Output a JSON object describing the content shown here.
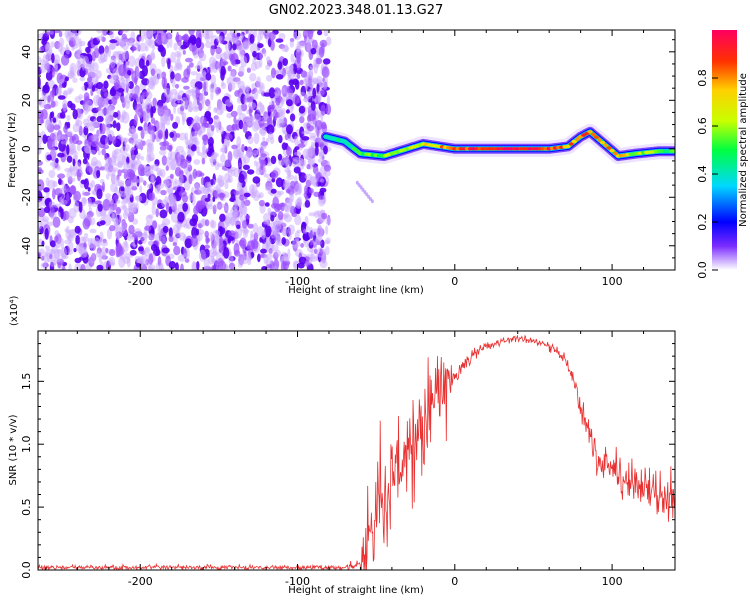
{
  "title": "GN02.2023.348.01.13.G27",
  "chart_data": [
    {
      "type": "heatmap",
      "xlabel": "Height of straight line (km)",
      "ylabel": "Frequency (Hz)",
      "xlim": [
        -265,
        140
      ],
      "ylim": [
        -50,
        49
      ],
      "x_ticks": [
        -200,
        -100,
        0,
        100
      ],
      "y_ticks": [
        -40,
        -20,
        0,
        20,
        40
      ],
      "colorbar": {
        "label": "Normalized spectral amplitude",
        "range": [
          0,
          1
        ],
        "ticks": [
          0.0,
          0.2,
          0.4,
          0.6,
          0.8
        ],
        "colors": [
          "#ffffff",
          "#7b2cff",
          "#0000ff",
          "#00d8ff",
          "#00ff40",
          "#c8ff00",
          "#ffd000",
          "#ff3000",
          "#ff0060"
        ]
      },
      "noise_region": {
        "x_range": [
          -265,
          -80
        ],
        "freq_range": [
          -50,
          49
        ],
        "amplitude": 0.1
      },
      "ridge": [
        {
          "x": -82,
          "f": 5,
          "amp": 0.35
        },
        {
          "x": -70,
          "f": 3,
          "amp": 0.4
        },
        {
          "x": -60,
          "f": -2,
          "amp": 0.5
        },
        {
          "x": -45,
          "f": -3,
          "amp": 0.55
        },
        {
          "x": -35,
          "f": -1,
          "amp": 0.6
        },
        {
          "x": -20,
          "f": 2,
          "amp": 0.7
        },
        {
          "x": -10,
          "f": 1,
          "amp": 0.75
        },
        {
          "x": 0,
          "f": 0,
          "amp": 0.85
        },
        {
          "x": 20,
          "f": 0,
          "amp": 0.95
        },
        {
          "x": 40,
          "f": 0,
          "amp": 1.0
        },
        {
          "x": 60,
          "f": 0,
          "amp": 0.9
        },
        {
          "x": 72,
          "f": 1,
          "amp": 0.8
        },
        {
          "x": 80,
          "f": 5,
          "amp": 0.85
        },
        {
          "x": 86,
          "f": 7,
          "amp": 0.85
        },
        {
          "x": 95,
          "f": 2,
          "amp": 0.8
        },
        {
          "x": 104,
          "f": -3,
          "amp": 0.75
        },
        {
          "x": 115,
          "f": -2,
          "amp": 0.6
        },
        {
          "x": 130,
          "f": -1,
          "amp": 0.55
        },
        {
          "x": 140,
          "f": -1,
          "amp": 0.5
        }
      ]
    },
    {
      "type": "line",
      "xlabel": "Height of straight line (km)",
      "ylabel": "SNR (10 * v/v)",
      "y_multiplier": "(x10⁴)",
      "xlim": [
        -265,
        140
      ],
      "ylim": [
        0,
        1.9
      ],
      "x_ticks": [
        -200,
        -100,
        0,
        100
      ],
      "y_ticks": [
        0.0,
        0.5,
        1.0,
        1.5
      ],
      "series": [
        {
          "color": "#e83030",
          "x": [
            -265,
            -150,
            -70,
            -60,
            -55,
            -50,
            -45,
            -40,
            -35,
            -30,
            -25,
            -20,
            -15,
            -10,
            -5,
            0,
            10,
            20,
            30,
            40,
            50,
            60,
            70,
            75,
            80,
            85,
            90,
            95,
            100,
            110,
            120,
            130,
            140
          ],
          "y": [
            0.02,
            0.02,
            0.02,
            0.05,
            0.25,
            0.45,
            0.6,
            0.7,
            0.8,
            0.9,
            1.0,
            1.15,
            1.3,
            1.4,
            1.45,
            1.55,
            1.7,
            1.78,
            1.82,
            1.84,
            1.82,
            1.78,
            1.68,
            1.55,
            1.3,
            1.1,
            0.9,
            0.82,
            0.8,
            0.72,
            0.65,
            0.58,
            0.55
          ],
          "noise": [
            0.02,
            0.02,
            0.02,
            0.1,
            0.35,
            0.35,
            0.4,
            0.45,
            0.45,
            0.45,
            0.4,
            0.4,
            0.35,
            0.3,
            0.25,
            0.1,
            0.06,
            0.04,
            0.03,
            0.03,
            0.03,
            0.04,
            0.05,
            0.06,
            0.1,
            0.12,
            0.14,
            0.16,
            0.18,
            0.2,
            0.22,
            0.22,
            0.22
          ]
        }
      ]
    }
  ]
}
